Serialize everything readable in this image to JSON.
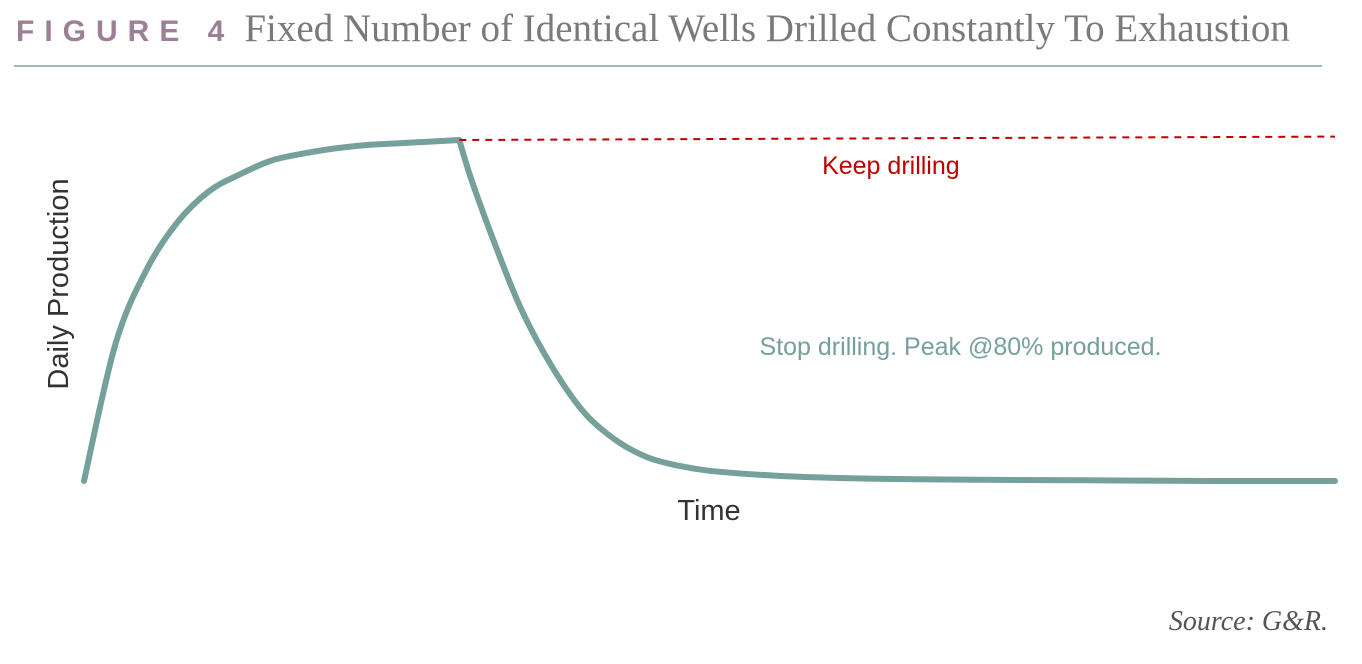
{
  "figure": {
    "label": "FIGURE 4",
    "title": "Fixed Number of Identical Wells Drilled Constantly To Exhaustion",
    "source": "Source: G&R."
  },
  "colors": {
    "label": "#9b8098",
    "title": "#7a7a7a",
    "rule": "#a6bab5",
    "main_series": "#76a09b",
    "keep_drilling": "#c00000",
    "axis_text": "#333333"
  },
  "chart_data": {
    "type": "line",
    "title": "Fixed Number of Identical Wells Drilled Constantly To Exhaustion",
    "xlabel": "Time",
    "ylabel": "Daily Production",
    "xlim": [
      0,
      10
    ],
    "ylim": [
      0,
      1
    ],
    "grid": false,
    "legend": "none",
    "axes_visible": false,
    "series": [
      {
        "name": "Stop drilling. Peak @80% produced.",
        "style": "solid",
        "color": "#76a09b",
        "x": [
          0,
          0.25,
          0.5,
          0.75,
          1.0,
          1.25,
          1.5,
          1.75,
          2.0,
          2.25,
          2.5,
          2.75,
          3.0,
          3.1,
          3.3,
          3.5,
          3.75,
          4.0,
          4.25,
          4.5,
          4.75,
          5.0,
          5.5,
          6.0,
          6.5,
          7.0,
          8.0,
          9.0,
          10.0
        ],
        "y": [
          0.0,
          0.4,
          0.62,
          0.76,
          0.85,
          0.9,
          0.94,
          0.96,
          0.975,
          0.985,
          0.99,
          0.995,
          1.0,
          0.88,
          0.68,
          0.5,
          0.33,
          0.2,
          0.12,
          0.07,
          0.045,
          0.03,
          0.016,
          0.009,
          0.006,
          0.004,
          0.002,
          0.0,
          0.0
        ]
      },
      {
        "name": "Keep drilling",
        "style": "dashed",
        "color": "#c00000",
        "x": [
          3.0,
          10.0
        ],
        "y": [
          1.0,
          1.01
        ]
      }
    ],
    "annotations": [
      {
        "text": "Keep drilling",
        "x": 5.9,
        "y": 0.9,
        "color": "#c00000"
      },
      {
        "text": "Stop drilling. Peak @80% produced.",
        "x": 5.4,
        "y": 0.37,
        "color": "#76a09b"
      }
    ]
  }
}
